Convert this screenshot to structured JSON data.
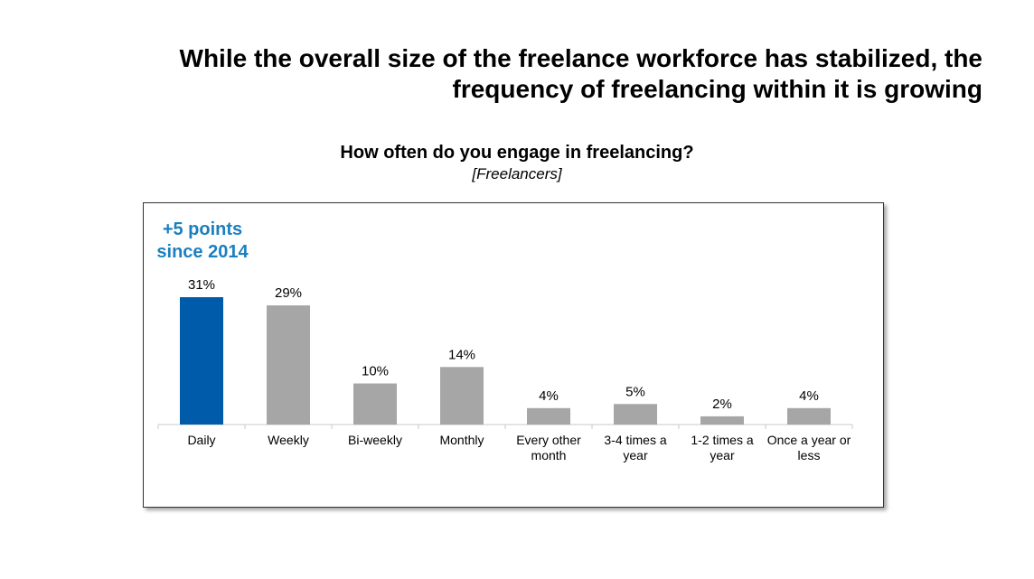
{
  "headline": {
    "line1": "While the overall size of the freelance workforce has stabilized, the",
    "line2": "frequency of freelancing within it is growing"
  },
  "question": "How often do you engage in freelancing?",
  "base": "[Freelancers]",
  "callout": {
    "line1": "+5 points",
    "line2": "since 2014",
    "color": "#1b7fc1"
  },
  "chart_data": {
    "type": "bar",
    "title": "How often do you engage in freelancing?",
    "subtitle": "[Freelancers]",
    "categories": [
      [
        "Daily"
      ],
      [
        "Weekly"
      ],
      [
        "Bi-weekly"
      ],
      [
        "Monthly"
      ],
      [
        "Every other",
        "month"
      ],
      [
        "3-4 times a",
        "year"
      ],
      [
        "1-2 times a",
        "year"
      ],
      [
        "Once a year or",
        "less"
      ]
    ],
    "values": [
      31,
      29,
      10,
      14,
      4,
      5,
      2,
      4
    ],
    "data_labels": [
      "31%",
      "29%",
      "10%",
      "14%",
      "4%",
      "5%",
      "2%",
      "4%"
    ],
    "ylim": [
      0,
      31
    ],
    "highlight_index": 0,
    "colors": {
      "highlight": "#005bab",
      "default": "#a6a6a6",
      "axis": "#c8c8c8"
    },
    "grid": false,
    "legend": "none"
  }
}
